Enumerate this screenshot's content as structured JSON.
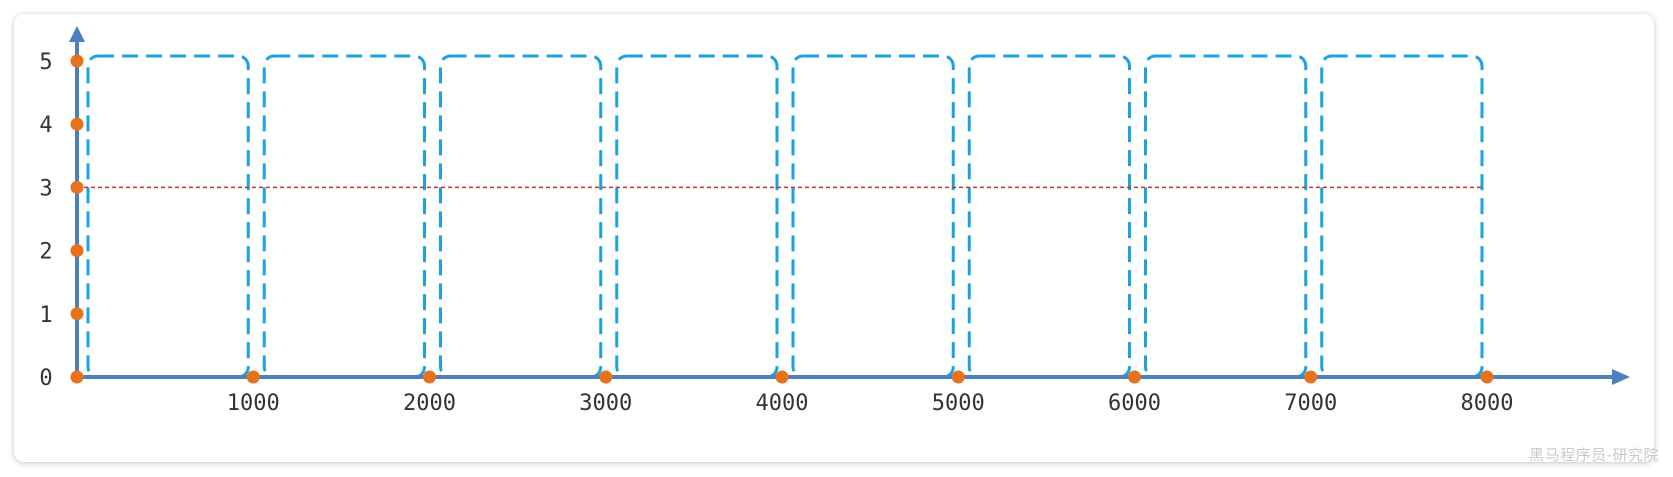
{
  "colors": {
    "axis": "#4a7fc1",
    "window_border": "#1aa3de",
    "threshold_line": "#c0392b",
    "dot": "#e8711c",
    "tick_text": "#333333"
  },
  "axes": {
    "y_ticks": [
      "0",
      "1",
      "2",
      "3",
      "4",
      "5"
    ],
    "x_ticks": [
      "1000",
      "2000",
      "3000",
      "4000",
      "5000",
      "6000",
      "7000",
      "8000"
    ]
  },
  "chart_data": {
    "type": "diagram",
    "x_range": [
      0,
      8000
    ],
    "y_range": [
      0,
      5
    ],
    "windows": [
      {
        "x_start": 0,
        "x_end": 1000,
        "y_max": 5
      },
      {
        "x_start": 1000,
        "x_end": 2000,
        "y_max": 5
      },
      {
        "x_start": 2000,
        "x_end": 3000,
        "y_max": 5
      },
      {
        "x_start": 3000,
        "x_end": 4000,
        "y_max": 5
      },
      {
        "x_start": 4000,
        "x_end": 5000,
        "y_max": 5
      },
      {
        "x_start": 5000,
        "x_end": 6000,
        "y_max": 5
      },
      {
        "x_start": 6000,
        "x_end": 7000,
        "y_max": 5
      },
      {
        "x_start": 7000,
        "x_end": 8000,
        "y_max": 5
      }
    ],
    "threshold_y": 3,
    "y_axis_dots": [
      0,
      1,
      2,
      3,
      4,
      5
    ],
    "x_axis_dots": [
      1000,
      2000,
      3000,
      4000,
      5000,
      6000,
      7000,
      8000
    ]
  },
  "watermark": "黑马程序员-研究院"
}
